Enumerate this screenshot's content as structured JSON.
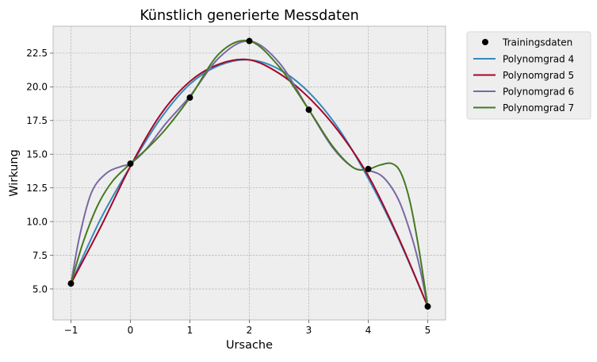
{
  "chart_data": {
    "type": "line",
    "title": "Künstlich generierte Messdaten",
    "xlabel": "Ursache",
    "ylabel": "Wirkung",
    "xlim": [
      -1.3,
      5.3
    ],
    "ylim": [
      2.7,
      24.5
    ],
    "xticks": [
      -1,
      0,
      1,
      2,
      3,
      4,
      5
    ],
    "xtick_labels": [
      "−1",
      "0",
      "1",
      "2",
      "3",
      "4",
      "5"
    ],
    "yticks": [
      5.0,
      7.5,
      10.0,
      12.5,
      15.0,
      17.5,
      20.0,
      22.5
    ],
    "ytick_labels": [
      "5.0",
      "7.5",
      "10.0",
      "12.5",
      "15.0",
      "17.5",
      "20.0",
      "22.5"
    ],
    "grid": true,
    "legend_position": "outside-right-top",
    "points": {
      "name": "Trainingsdaten",
      "color": "#000000",
      "x": [
        -1,
        0,
        1,
        2,
        3,
        4,
        5
      ],
      "y": [
        5.4,
        14.3,
        19.2,
        23.4,
        18.3,
        13.9,
        3.7
      ]
    },
    "series": [
      {
        "name": "Polynomgrad 4",
        "color": "#348ABD",
        "x": [
          -1,
          -0.5,
          0,
          0.5,
          1,
          1.5,
          2,
          2.5,
          3,
          3.5,
          4,
          4.5,
          5
        ],
        "y": [
          5.4,
          10.2,
          14.1,
          17.6,
          20.2,
          21.6,
          22.0,
          21.3,
          19.6,
          16.9,
          13.2,
          8.8,
          3.7
        ]
      },
      {
        "name": "Polynomgrad 5",
        "color": "#A60628",
        "x": [
          -1,
          -0.5,
          0,
          0.5,
          1,
          1.5,
          2,
          2.5,
          3,
          3.5,
          4,
          4.5,
          5
        ],
        "y": [
          5.4,
          9.6,
          14.1,
          17.9,
          20.4,
          21.7,
          22.0,
          21.0,
          19.2,
          16.7,
          13.4,
          8.9,
          3.7
        ]
      },
      {
        "name": "Polynomgrad 6",
        "color": "#7A68A6",
        "x": [
          -1,
          -0.85,
          -0.65,
          -0.4,
          -0.15,
          0,
          0.25,
          0.6,
          1,
          1.5,
          2,
          2.5,
          3,
          3.4,
          3.75,
          4,
          4.25,
          4.5,
          4.7,
          4.85,
          5
        ],
        "y": [
          5.4,
          9.0,
          12.2,
          13.6,
          14.1,
          14.3,
          15.3,
          17.3,
          19.3,
          22.2,
          23.4,
          21.8,
          18.3,
          15.5,
          14.0,
          13.8,
          13.3,
          11.7,
          9.3,
          6.9,
          3.7
        ]
      },
      {
        "name": "Polynomgrad 7",
        "color": "#467821",
        "x": [
          -1,
          -0.8,
          -0.55,
          -0.3,
          0,
          0.3,
          0.6,
          1,
          1.5,
          2,
          2.5,
          3,
          3.4,
          3.75,
          4,
          4.2,
          4.4,
          4.55,
          4.7,
          4.85,
          5
        ],
        "y": [
          5.4,
          8.4,
          11.2,
          13.0,
          14.3,
          15.5,
          16.9,
          19.2,
          22.5,
          23.4,
          21.5,
          18.3,
          15.6,
          14.0,
          13.9,
          14.2,
          14.3,
          13.6,
          11.5,
          8.0,
          3.7
        ]
      }
    ]
  }
}
